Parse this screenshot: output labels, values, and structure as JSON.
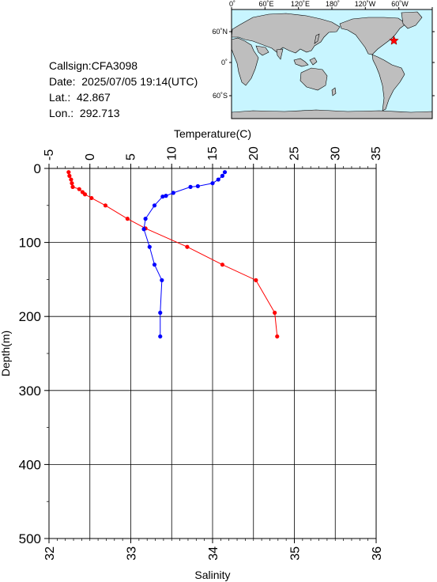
{
  "info": {
    "callsign": "Callsign:CFA3098",
    "date": "Date:  2025/07/05 19:14(UTC)",
    "lat": "Lat.:  42.867",
    "lon": "Lon.:  292.713"
  },
  "map": {
    "top_ticks": [
      "0˚",
      "60˚E",
      "120˚E",
      "180˚",
      "120˚W",
      "60˚W"
    ],
    "left_ticks": [
      "60˚N",
      "0˚",
      "60˚S"
    ],
    "ocean_color": "#c8f5ff",
    "land_color": "#bebebe",
    "marker_color": "#ff0000",
    "marker_icon": "star-icon"
  },
  "chart_data": {
    "type": "line",
    "top_axis": {
      "label": "Temperature(C)",
      "range": [
        -5,
        35
      ],
      "ticks": [
        "-5",
        "0",
        "5",
        "10",
        "15",
        "20",
        "25",
        "30",
        "35"
      ]
    },
    "bottom_axis": {
      "label": "Salinity",
      "range": [
        32,
        36
      ],
      "ticks": [
        "32",
        "33",
        "34",
        "35",
        "36"
      ]
    },
    "y_axis": {
      "label": "Depth(m)",
      "range": [
        0,
        500
      ],
      "reversed": true,
      "ticks": [
        "0",
        "100",
        "200",
        "300",
        "400",
        "500"
      ]
    },
    "grid": true,
    "series": [
      {
        "axis": "top",
        "color": "#ff0000",
        "points": [
          {
            "x": -2.6,
            "y": 5
          },
          {
            "x": -2.5,
            "y": 10
          },
          {
            "x": -2.3,
            "y": 15
          },
          {
            "x": -2.2,
            "y": 20
          },
          {
            "x": -2.1,
            "y": 25
          },
          {
            "x": -1.3,
            "y": 28
          },
          {
            "x": -0.9,
            "y": 32
          },
          {
            "x": -0.6,
            "y": 35
          },
          {
            "x": 0.2,
            "y": 40
          },
          {
            "x": 1.9,
            "y": 50
          },
          {
            "x": 4.6,
            "y": 68
          },
          {
            "x": 6.8,
            "y": 81
          },
          {
            "x": 11.9,
            "y": 106
          },
          {
            "x": 16.2,
            "y": 130
          },
          {
            "x": 20.3,
            "y": 151
          },
          {
            "x": 22.6,
            "y": 195
          },
          {
            "x": 22.9,
            "y": 227
          }
        ]
      },
      {
        "axis": "bottom",
        "color": "#0000ff",
        "points": [
          {
            "x": 34.15,
            "y": 5
          },
          {
            "x": 34.12,
            "y": 10
          },
          {
            "x": 34.07,
            "y": 15
          },
          {
            "x": 34.0,
            "y": 20
          },
          {
            "x": 33.82,
            "y": 24
          },
          {
            "x": 33.73,
            "y": 25
          },
          {
            "x": 33.52,
            "y": 33
          },
          {
            "x": 33.43,
            "y": 37
          },
          {
            "x": 33.39,
            "y": 38
          },
          {
            "x": 33.29,
            "y": 50
          },
          {
            "x": 33.18,
            "y": 68
          },
          {
            "x": 33.16,
            "y": 82
          },
          {
            "x": 33.23,
            "y": 106
          },
          {
            "x": 33.29,
            "y": 130
          },
          {
            "x": 33.38,
            "y": 151
          },
          {
            "x": 33.36,
            "y": 195
          },
          {
            "x": 33.36,
            "y": 227
          }
        ]
      }
    ]
  }
}
